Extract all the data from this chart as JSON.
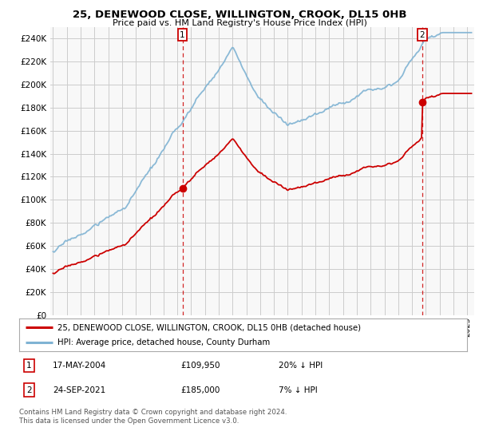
{
  "title": "25, DENEWOOD CLOSE, WILLINGTON, CROOK, DL15 0HB",
  "subtitle": "Price paid vs. HM Land Registry's House Price Index (HPI)",
  "ylabel_ticks": [
    "£0",
    "£20K",
    "£40K",
    "£60K",
    "£80K",
    "£100K",
    "£120K",
    "£140K",
    "£160K",
    "£180K",
    "£200K",
    "£220K",
    "£240K"
  ],
  "ytick_values": [
    0,
    20000,
    40000,
    60000,
    80000,
    100000,
    120000,
    140000,
    160000,
    180000,
    200000,
    220000,
    240000
  ],
  "ylim_max": 250000,
  "xlim_start": 1994.8,
  "xlim_end": 2025.5,
  "hpi_color": "#7fb3d3",
  "price_color": "#cc0000",
  "sale1_date": 2004.37,
  "sale1_price": 109950,
  "sale2_date": 2021.73,
  "sale2_price": 185000,
  "legend_house_label": "25, DENEWOOD CLOSE, WILLINGTON, CROOK, DL15 0HB (detached house)",
  "legend_hpi_label": "HPI: Average price, detached house, County Durham",
  "footer": "Contains HM Land Registry data © Crown copyright and database right 2024.\nThis data is licensed under the Open Government Licence v3.0.",
  "background_color": "#ffffff",
  "grid_color": "#cccccc",
  "hpi_seed": 17
}
